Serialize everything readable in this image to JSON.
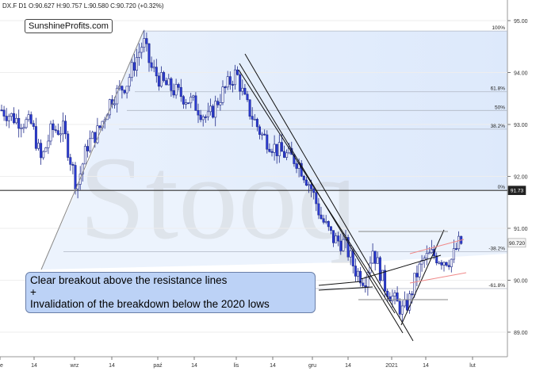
{
  "header": {
    "symbol": "DX.F",
    "timeframe": "D1",
    "open": "O:90.627",
    "high": "H:90.757",
    "low": "L:90.580",
    "close": "C:90.720",
    "change": "(+0.32%)"
  },
  "brand": "SunshineProfits.com",
  "watermark": "Stooq",
  "annotation": {
    "line1": "Clear breakout above the resistance lines",
    "line2": "+",
    "line3": "Invalidation of the breakdown below the 2020 lows"
  },
  "chart_data": {
    "type": "candlestick",
    "y_axis_ticks": [
      "95.00",
      "94.00",
      "93.00",
      "92.00",
      "91.00",
      "90.00",
      "89.00"
    ],
    "y_tick_values": [
      95.0,
      94.0,
      93.0,
      92.0,
      91.0,
      90.0,
      89.0
    ],
    "ylim": [
      88.6,
      95.4
    ],
    "x_axis_ticks": [
      "e",
      "14",
      "wrz",
      "14",
      "paź",
      "14",
      "lis",
      "14",
      "gru",
      "14",
      "2021",
      "14",
      "lut"
    ],
    "fib_levels": [
      {
        "label": "100%",
        "value": 94.8
      },
      {
        "label": "61.8%",
        "value": 93.63
      },
      {
        "label": "50%",
        "value": 93.27
      },
      {
        "label": "38.2%",
        "value": 92.91
      },
      {
        "label": "0%",
        "value": 91.73
      },
      {
        "label": "-38.2%",
        "value": 90.55
      },
      {
        "label": "-61.8%",
        "value": 89.84
      }
    ],
    "price_tags": [
      {
        "label": "91.73",
        "value": 91.73,
        "style": "dark"
      },
      {
        "label": "90.720",
        "value": 90.72,
        "style": "light"
      }
    ],
    "last_close": 90.72
  }
}
